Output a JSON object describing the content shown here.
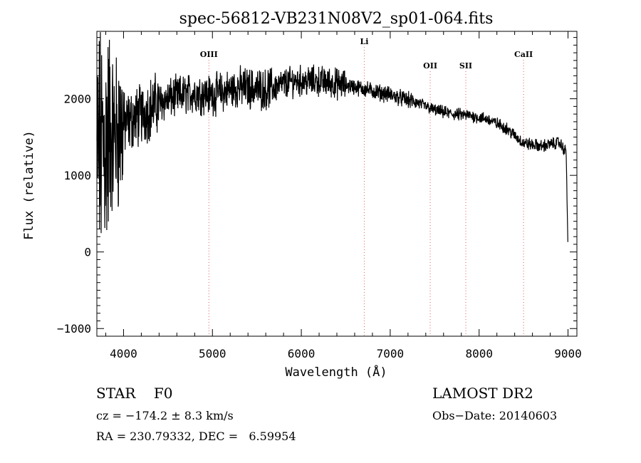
{
  "chart_data": {
    "type": "line",
    "title": "spec-56812-VB231N08V2_sp01-064.fits",
    "xlabel": "Wavelength (Å)",
    "ylabel": "Flux (relative)",
    "xlim": [
      3700,
      9100
    ],
    "ylim": [
      -1100,
      2880
    ],
    "x_ticks": [
      4000,
      5000,
      6000,
      7000,
      8000,
      9000
    ],
    "y_ticks": [
      -1000,
      0,
      1000,
      2000
    ],
    "grid": false,
    "line_color": "#000000",
    "marker_color": "#e06060",
    "spectrum_anchors": {
      "x": [
        3700,
        3800,
        3900,
        4000,
        4200,
        4400,
        4600,
        4800,
        5000,
        5300,
        5600,
        5900,
        6200,
        6500,
        6700,
        7000,
        7300,
        7500,
        7700,
        7900,
        8100,
        8300,
        8500,
        8700,
        8900,
        8980,
        9000
      ],
      "y": [
        1300,
        1450,
        1550,
        1650,
        1800,
        1950,
        2030,
        2080,
        2050,
        2150,
        2120,
        2230,
        2230,
        2180,
        2130,
        2050,
        1950,
        1850,
        1800,
        1780,
        1730,
        1620,
        1420,
        1380,
        1430,
        1300,
        0
      ]
    },
    "line_markers": [
      {
        "label": "OIII",
        "x": 4960
      },
      {
        "label": "Li",
        "x": 6708
      },
      {
        "label": "OII",
        "x": 7450
      },
      {
        "label": "SII",
        "x": 7850
      },
      {
        "label": "CaII",
        "x": 8500
      }
    ]
  },
  "info": {
    "object_class": "STAR",
    "subclass": "F0",
    "survey": "LAMOST DR2",
    "cz": "cz = −174.2 ± 8.3 km/s",
    "obs_date": "Obs−Date: 20140603",
    "coords": "RA = 230.79332, DEC =   6.59954"
  }
}
